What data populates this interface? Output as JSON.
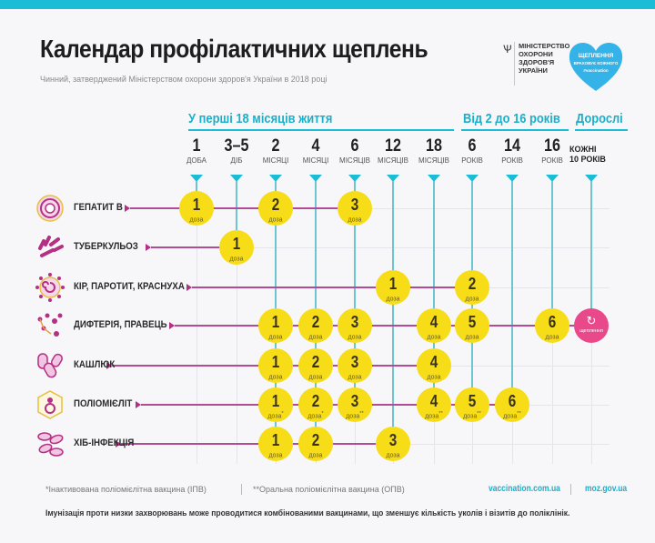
{
  "header": {
    "title": "Календар профілактичних щеплень",
    "subtitle": "Чинний, затверджений Міністерством охорони здоров'я України в 2018 році",
    "ministry": [
      "МІНІСТЕРСТВО",
      "ОХОРОНИ",
      "ЗДОРОВ'Я",
      "УКРАЇНИ"
    ],
    "campaign_logo": [
      "ЩЕПЛЕННЯ",
      "ВРАХОВУЄ КОЖНОГО",
      "#vaccination"
    ]
  },
  "sections": [
    {
      "label": "У перші 18 місяців життя"
    },
    {
      "label": "Від 2 до 16 років"
    },
    {
      "label": "Дорослі"
    }
  ],
  "columns": [
    {
      "num": "1",
      "unit": "ДОБА"
    },
    {
      "num": "3–5",
      "unit": "ДІБ"
    },
    {
      "num": "2",
      "unit": "МІСЯЦІ"
    },
    {
      "num": "4",
      "unit": "МІСЯЦІ"
    },
    {
      "num": "6",
      "unit": "МІСЯЦІВ"
    },
    {
      "num": "12",
      "unit": "МІСЯЦІВ"
    },
    {
      "num": "18",
      "unit": "МІСЯЦІВ"
    },
    {
      "num": "6",
      "unit": "РОКІВ"
    },
    {
      "num": "14",
      "unit": "РОКІВ"
    },
    {
      "num": "16",
      "unit": "РОКІВ"
    },
    {
      "num": "КОЖНІ",
      "unit": "10 РОКІВ"
    }
  ],
  "dose_label": "доза",
  "revaccination_label": "щеплення",
  "diseases": [
    {
      "name": "ГЕПАТИТ В",
      "icon": "hepatitis-b-icon",
      "doses": [
        {
          "col": 0,
          "n": "1"
        },
        {
          "col": 2,
          "n": "2"
        },
        {
          "col": 4,
          "n": "3"
        }
      ]
    },
    {
      "name": "ТУБЕРКУЛЬОЗ",
      "icon": "tuberculosis-icon",
      "doses": [
        {
          "col": 1,
          "n": "1"
        }
      ]
    },
    {
      "name": "КІР, ПАРОТИТ, КРАСНУХА",
      "icon": "mmr-icon",
      "doses": [
        {
          "col": 5,
          "n": "1"
        },
        {
          "col": 7,
          "n": "2"
        }
      ]
    },
    {
      "name": "ДИФТЕРІЯ, ПРАВЕЦЬ",
      "icon": "diphtheria-tetanus-icon",
      "doses": [
        {
          "col": 2,
          "n": "1"
        },
        {
          "col": 3,
          "n": "2"
        },
        {
          "col": 4,
          "n": "3"
        },
        {
          "col": 6,
          "n": "4"
        },
        {
          "col": 7,
          "n": "5"
        },
        {
          "col": 9,
          "n": "6"
        }
      ],
      "revaccination_col": 10
    },
    {
      "name": "КАШЛЮК",
      "icon": "pertussis-icon",
      "doses": [
        {
          "col": 2,
          "n": "1"
        },
        {
          "col": 3,
          "n": "2"
        },
        {
          "col": 4,
          "n": "3"
        },
        {
          "col": 6,
          "n": "4"
        }
      ]
    },
    {
      "name": "ПОЛІОМІЄЛІТ",
      "icon": "polio-icon",
      "doses": [
        {
          "col": 2,
          "n": "1",
          "mark": "*"
        },
        {
          "col": 3,
          "n": "2",
          "mark": "*"
        },
        {
          "col": 4,
          "n": "3",
          "mark": "**"
        },
        {
          "col": 6,
          "n": "4",
          "mark": "**"
        },
        {
          "col": 7,
          "n": "5",
          "mark": "**"
        },
        {
          "col": 8,
          "n": "6",
          "mark": "**"
        }
      ]
    },
    {
      "name": "ХІБ-ІНФЕКЦІЯ",
      "icon": "hib-icon",
      "doses": [
        {
          "col": 2,
          "n": "1"
        },
        {
          "col": 3,
          "n": "2"
        },
        {
          "col": 5,
          "n": "3"
        }
      ]
    }
  ],
  "footer": {
    "footnote_1": "*Інактивована поліомієлітна вакцина (ІПВ)",
    "footnote_2": "**Оральна поліомієлітна вакцина (ОПВ)",
    "link_1": "vaccination.com.ua",
    "link_2": "moz.gov.ua",
    "note": "Імунізація проти низки захворювань може проводитися комбінованими вакцинами, що зменшує кількість уколів і візитів до поліклінік."
  },
  "colors": {
    "accent": "#1bbdd6",
    "dose": "#f7dd18",
    "revaccination": "#e9498a",
    "disease_line": "#b04b94"
  }
}
